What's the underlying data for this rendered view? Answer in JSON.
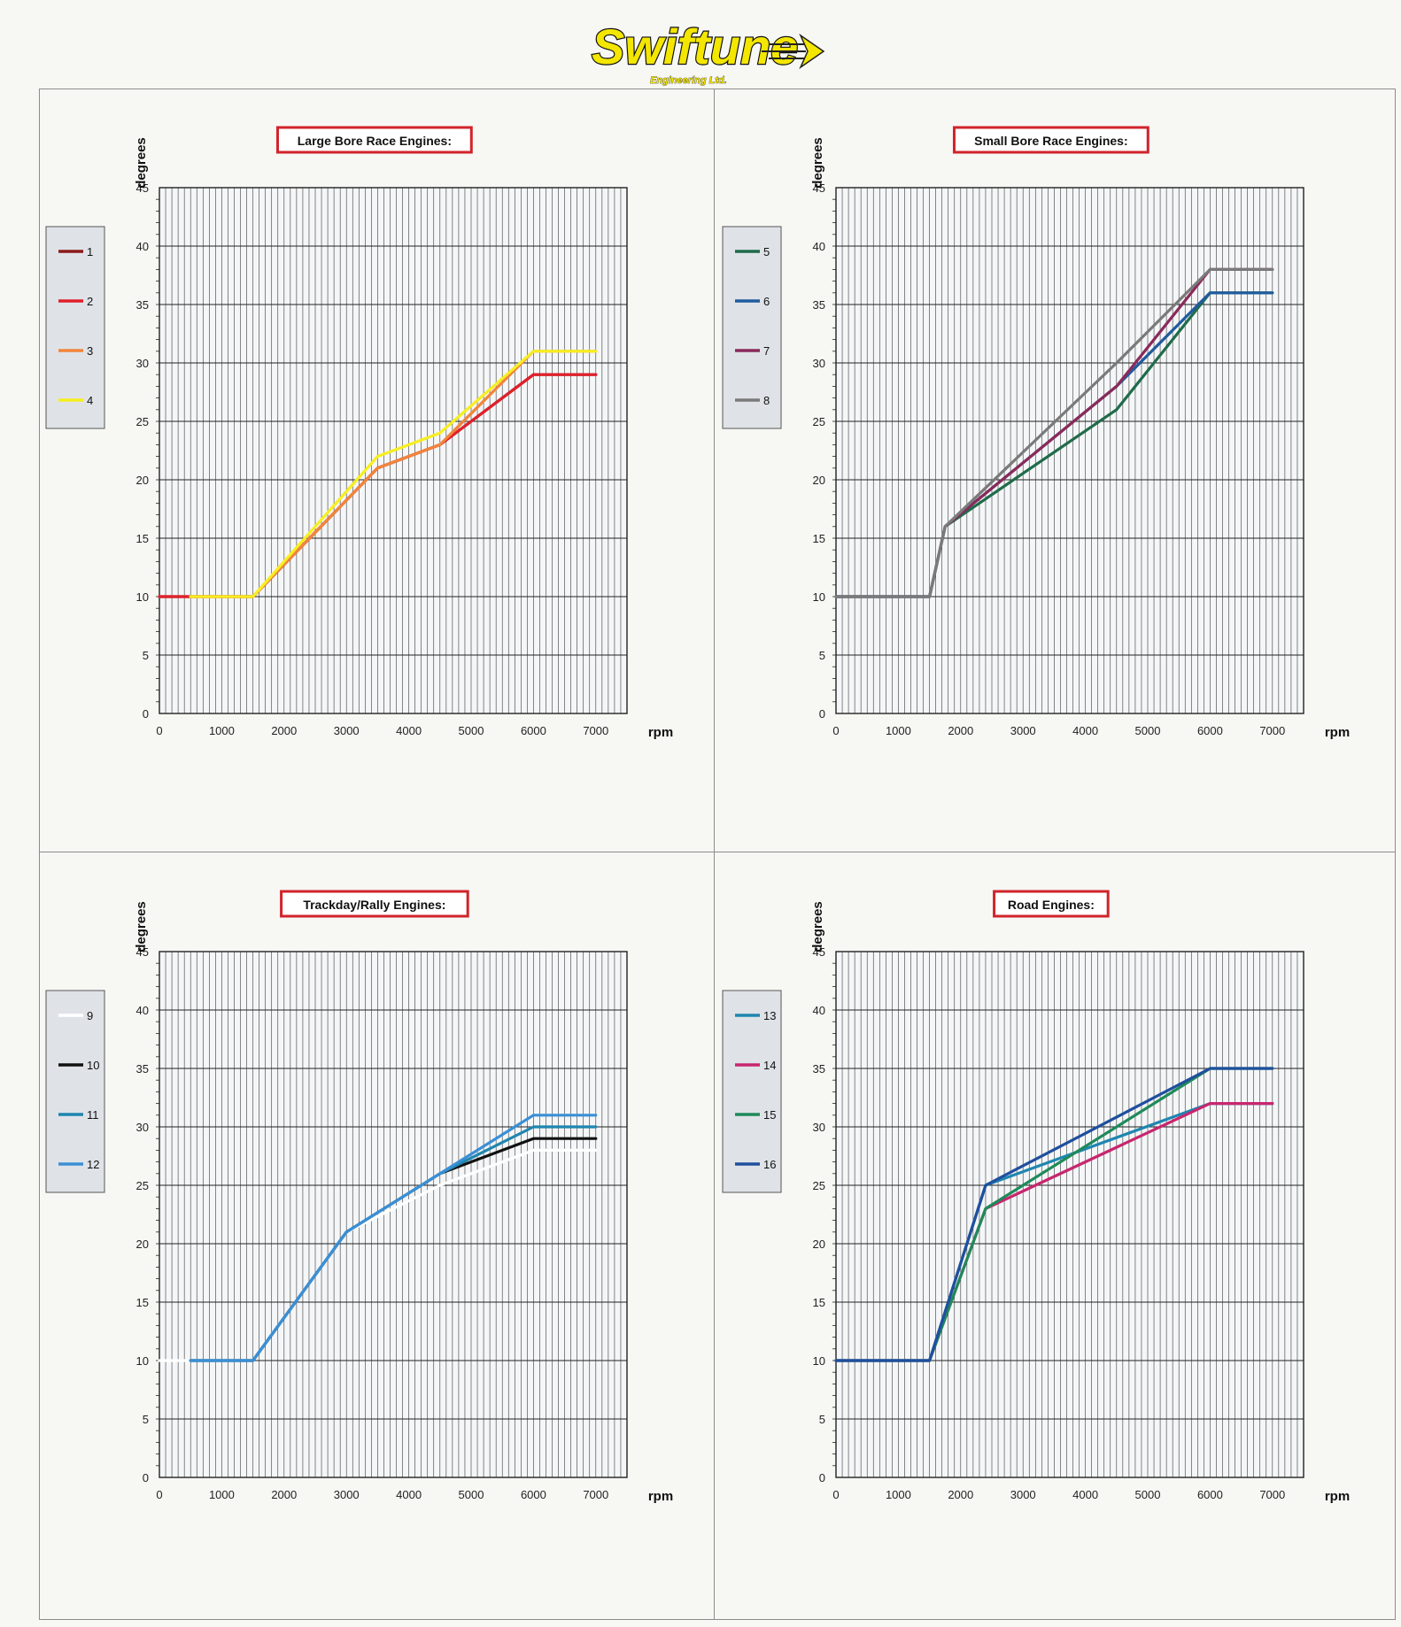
{
  "brand": {
    "name": "Swiftune",
    "subtitle": "Engineering Ltd.",
    "colors": {
      "fill": "#f3e600",
      "outline": "#111111"
    }
  },
  "chart_data": [
    {
      "type": "line",
      "title": "Large Bore Race Engines:",
      "xlabel": "rpm",
      "ylabel": "degrees",
      "xlim": [
        0,
        7500
      ],
      "ylim": [
        0,
        45
      ],
      "xticks": [
        0,
        1000,
        2000,
        3000,
        4000,
        5000,
        6000,
        7000
      ],
      "yticks": [
        0,
        5,
        10,
        15,
        20,
        25,
        30,
        35,
        40,
        45
      ],
      "grid": true,
      "legend_position": "left",
      "series": [
        {
          "name": "1",
          "color": "#8b1a1a",
          "x": [
            0,
            500,
            1500,
            3500,
            4500,
            5000,
            6000,
            7000
          ],
          "y": [
            10,
            10,
            10,
            21,
            23,
            25,
            29,
            29
          ]
        },
        {
          "name": "2",
          "color": "#e0202a",
          "x": [
            0,
            500,
            1500,
            3500,
            4500,
            5000,
            6000,
            7000
          ],
          "y": [
            10,
            10,
            10,
            21,
            23,
            25,
            29,
            29
          ]
        },
        {
          "name": "3",
          "color": "#f2853a",
          "x": [
            500,
            1500,
            3500,
            4500,
            6000,
            7000
          ],
          "y": [
            10,
            10,
            21,
            23,
            31,
            31
          ]
        },
        {
          "name": "4",
          "color": "#f7ee20",
          "x": [
            500,
            1500,
            3500,
            4500,
            6000,
            7000
          ],
          "y": [
            10,
            10,
            22,
            24,
            31,
            31
          ]
        }
      ]
    },
    {
      "type": "line",
      "title": "Small Bore Race Engines:",
      "xlabel": "rpm",
      "ylabel": "degrees",
      "xlim": [
        0,
        7500
      ],
      "ylim": [
        0,
        45
      ],
      "xticks": [
        0,
        1000,
        2000,
        3000,
        4000,
        5000,
        6000,
        7000
      ],
      "yticks": [
        0,
        5,
        10,
        15,
        20,
        25,
        30,
        35,
        40,
        45
      ],
      "grid": true,
      "legend_position": "left",
      "series": [
        {
          "name": "5",
          "color": "#1f6b4a",
          "x": [
            0,
            1500,
            1750,
            4500,
            6000,
            7000
          ],
          "y": [
            10,
            10,
            16,
            26,
            36,
            36
          ]
        },
        {
          "name": "6",
          "color": "#1f5b9e",
          "x": [
            0,
            1500,
            1750,
            4500,
            6000,
            7000
          ],
          "y": [
            10,
            10,
            16,
            28,
            36,
            36
          ]
        },
        {
          "name": "7",
          "color": "#8a2a5a",
          "x": [
            0,
            1500,
            1750,
            4500,
            6000,
            7000
          ],
          "y": [
            10,
            10,
            16,
            28,
            38,
            38
          ]
        },
        {
          "name": "8",
          "color": "#7a7a7a",
          "x": [
            0,
            1500,
            1750,
            4500,
            6000,
            7000
          ],
          "y": [
            10,
            10,
            16,
            30,
            38,
            38
          ]
        }
      ]
    },
    {
      "type": "line",
      "title": "Trackday/Rally Engines:",
      "xlabel": "rpm",
      "ylabel": "degrees",
      "xlim": [
        0,
        7500
      ],
      "ylim": [
        0,
        45
      ],
      "xticks": [
        0,
        1000,
        2000,
        3000,
        4000,
        5000,
        6000,
        7000
      ],
      "yticks": [
        0,
        5,
        10,
        15,
        20,
        25,
        30,
        35,
        40,
        45
      ],
      "grid": true,
      "legend_position": "left",
      "series": [
        {
          "name": "9",
          "color": "#ffffff",
          "x": [
            0,
            1500,
            3000,
            4500,
            6000,
            7000
          ],
          "y": [
            10,
            10,
            21,
            25,
            28,
            28
          ]
        },
        {
          "name": "10",
          "color": "#111111",
          "x": [
            500,
            1500,
            3000,
            4500,
            6000,
            7000
          ],
          "y": [
            10,
            10,
            21,
            26,
            29,
            29
          ]
        },
        {
          "name": "11",
          "color": "#1f86b0",
          "x": [
            500,
            1500,
            3000,
            4500,
            6000,
            7000
          ],
          "y": [
            10,
            10,
            21,
            26,
            30,
            30
          ]
        },
        {
          "name": "12",
          "color": "#3a8fd6",
          "x": [
            500,
            1500,
            3000,
            4500,
            6000,
            7000
          ],
          "y": [
            10,
            10,
            21,
            26,
            31,
            31
          ]
        }
      ]
    },
    {
      "type": "line",
      "title": "Road Engines:",
      "xlabel": "rpm",
      "ylabel": "degrees",
      "xlim": [
        0,
        7500
      ],
      "ylim": [
        0,
        45
      ],
      "xticks": [
        0,
        1000,
        2000,
        3000,
        4000,
        5000,
        6000,
        7000
      ],
      "yticks": [
        0,
        5,
        10,
        15,
        20,
        25,
        30,
        35,
        40,
        45
      ],
      "grid": true,
      "legend_position": "left",
      "series": [
        {
          "name": "13",
          "color": "#1f86b0",
          "x": [
            0,
            1500,
            2400,
            6000,
            7000
          ],
          "y": [
            10,
            10,
            25,
            32,
            32
          ]
        },
        {
          "name": "14",
          "color": "#c8266e",
          "x": [
            0,
            1500,
            2400,
            6000,
            7000
          ],
          "y": [
            10,
            10,
            23,
            32,
            32
          ]
        },
        {
          "name": "15",
          "color": "#1f8a5a",
          "x": [
            0,
            1500,
            2400,
            6000,
            7000
          ],
          "y": [
            10,
            10,
            23,
            35,
            35
          ]
        },
        {
          "name": "16",
          "color": "#1f4f9e",
          "x": [
            0,
            1500,
            2400,
            6000,
            7000
          ],
          "y": [
            10,
            10,
            25,
            35,
            35
          ]
        }
      ]
    }
  ]
}
